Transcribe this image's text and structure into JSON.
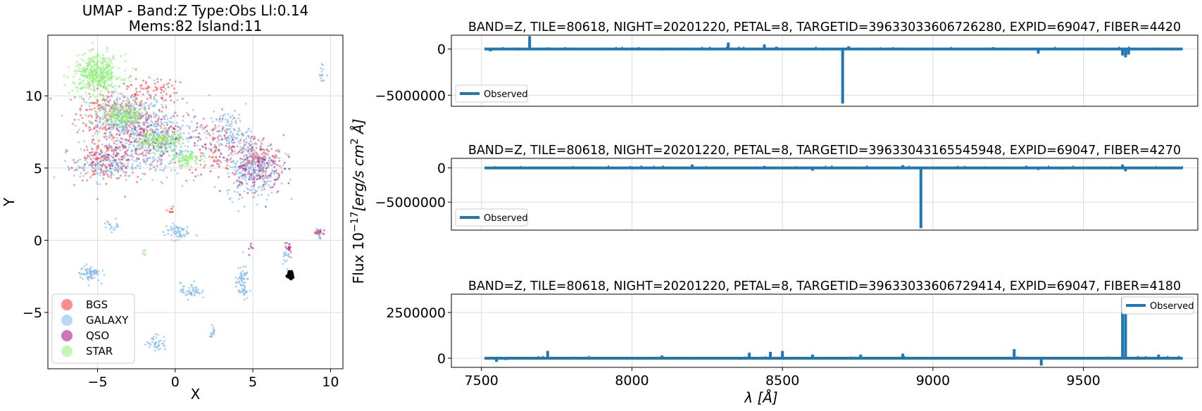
{
  "chart_data": [
    {
      "type": "scatter",
      "title": "UMAP  -  Band:Z Type:Obs Ll:0.14",
      "subtitle": "Mems:82 Island:11",
      "xlabel": "X",
      "ylabel": "Y",
      "xlim": [
        -8.2,
        10.8
      ],
      "ylim": [
        -8.9,
        14.2
      ],
      "xticks": [
        -5,
        0,
        5,
        10
      ],
      "yticks": [
        -5,
        0,
        5,
        10
      ],
      "xtick_labels": [
        "−5",
        "0",
        "5",
        "10"
      ],
      "ytick_labels": [
        "−5",
        "0",
        "5",
        "10"
      ],
      "grid": true,
      "legend_position": "lower-left",
      "series": [
        {
          "name": "BGS",
          "color": "#ff4d4d",
          "clusters": [
            [
              -4.2,
              8.8,
              2.0,
              1.6,
              200
            ],
            [
              -2.0,
              7.5,
              2.2,
              2.4,
              200
            ],
            [
              -4.5,
              5.5,
              1.6,
              1.2,
              150
            ],
            [
              5.2,
              5.5,
              1.6,
              1.6,
              140
            ],
            [
              2.5,
              6.5,
              1.5,
              2.0,
              80
            ],
            [
              -1.5,
              10.5,
              1.5,
              0.8,
              60
            ],
            [
              -0.3,
              2.0,
              0.2,
              0.3,
              10
            ],
            [
              7.3,
              -0.5,
              0.2,
              0.4,
              8
            ],
            [
              9.2,
              0.5,
              0.3,
              0.2,
              8
            ]
          ]
        },
        {
          "name": "GALAXY",
          "color": "#7db8f0",
          "clusters": [
            [
              -3.0,
              8.2,
              2.6,
              2.0,
              400
            ],
            [
              -1.0,
              6.5,
              2.4,
              2.0,
              300
            ],
            [
              -4.5,
              5.2,
              1.8,
              1.0,
              150
            ],
            [
              5.0,
              5.0,
              1.6,
              1.8,
              300
            ],
            [
              3.5,
              7.5,
              1.2,
              1.3,
              120
            ],
            [
              -5.5,
              -2.3,
              0.6,
              0.5,
              70
            ],
            [
              0.1,
              0.6,
              0.7,
              0.5,
              60
            ],
            [
              4.3,
              -3.0,
              0.4,
              1.1,
              70
            ],
            [
              1.0,
              -3.5,
              0.6,
              0.5,
              50
            ],
            [
              -1.2,
              -7.1,
              0.6,
              0.5,
              40
            ],
            [
              -4.0,
              1.0,
              0.5,
              0.4,
              20
            ],
            [
              7.2,
              -1.0,
              0.3,
              0.6,
              20
            ],
            [
              9.3,
              0.4,
              0.3,
              0.4,
              15
            ],
            [
              9.5,
              11.5,
              0.2,
              0.6,
              15
            ],
            [
              2.4,
              -6.2,
              0.2,
              0.5,
              15
            ]
          ]
        },
        {
          "name": "QSO",
          "color": "#b82a8c",
          "clusters": [
            [
              5.3,
              5.0,
              1.5,
              1.6,
              100
            ],
            [
              -2.0,
              7.3,
              2.3,
              1.8,
              80
            ],
            [
              2.4,
              6.5,
              1.4,
              1.8,
              40
            ],
            [
              -4.3,
              5.5,
              1.5,
              1.0,
              30
            ],
            [
              7.3,
              -0.5,
              0.2,
              0.3,
              10
            ],
            [
              9.3,
              0.6,
              0.3,
              0.2,
              8
            ],
            [
              4.9,
              -0.5,
              0.2,
              0.4,
              6
            ]
          ]
        },
        {
          "name": "STAR",
          "color": "#8ef27a",
          "clusters": [
            [
              -5.0,
              11.5,
              1.4,
              1.2,
              420
            ],
            [
              -3.4,
              8.6,
              1.3,
              0.8,
              180
            ],
            [
              -1.0,
              6.9,
              1.3,
              0.6,
              160
            ],
            [
              0.8,
              5.6,
              0.8,
              0.4,
              80
            ],
            [
              -2.0,
              -0.8,
              0.15,
              0.2,
              6
            ]
          ]
        },
        {
          "name": "",
          "color": "#000000",
          "clusters": [
            [
              7.4,
              -2.4,
              0.15,
              0.22,
              60
            ]
          ]
        }
      ],
      "legend": [
        {
          "name": "BGS",
          "color": "#ff4d4d",
          "alpha": 0.65
        },
        {
          "name": "GALAXY",
          "color": "#7db8f0",
          "alpha": 0.55
        },
        {
          "name": "QSO",
          "color": "#b82a8c",
          "alpha": 0.65
        },
        {
          "name": "STAR",
          "color": "#8ef27a",
          "alpha": 0.55
        }
      ]
    },
    {
      "type": "line",
      "title": "BAND=Z, TILE=80618, NIGHT=20201220, PETAL=8, TARGETID=39633033606726280, EXPID=69047, FIBER=4420",
      "xlim": [
        7400,
        9880
      ],
      "ylim": [
        -6200000,
        1500000
      ],
      "yticks": [
        0,
        -5000000
      ],
      "ytick_labels": [
        "0",
        "−5000000"
      ],
      "legend": [
        "Observed"
      ],
      "legend_position": "lower-left",
      "color": "#1f77b4",
      "baseline": 0,
      "spikes": [
        [
          7530,
          -250000
        ],
        [
          7610,
          120000
        ],
        [
          7660,
          1400000
        ],
        [
          7720,
          180000
        ],
        [
          8100,
          -150000
        ],
        [
          8320,
          700000
        ],
        [
          8440,
          500000
        ],
        [
          8480,
          250000
        ],
        [
          8700,
          -5900000
        ],
        [
          8720,
          300000
        ],
        [
          8900,
          150000
        ],
        [
          9200,
          200000
        ],
        [
          9350,
          -500000
        ],
        [
          9630,
          -700000
        ],
        [
          9640,
          -900000
        ],
        [
          9650,
          -600000
        ]
      ]
    },
    {
      "type": "line",
      "title": "BAND=Z, TILE=80618, NIGHT=20201220, PETAL=8, TARGETID=39633043165545948, EXPID=69047, FIBER=4270",
      "xlim": [
        7400,
        9880
      ],
      "ylim": [
        -9100000,
        1400000
      ],
      "yticks": [
        0,
        -5000000
      ],
      "ytick_labels": [
        "0",
        "−5000000"
      ],
      "legend": [
        "Observed"
      ],
      "legend_position": "lower-left",
      "color": "#1f77b4",
      "baseline": 0,
      "spikes": [
        [
          7530,
          -150000
        ],
        [
          7600,
          100000
        ],
        [
          7720,
          120000
        ],
        [
          8200,
          500000
        ],
        [
          8440,
          300000
        ],
        [
          8600,
          -400000
        ],
        [
          8900,
          400000
        ],
        [
          8960,
          -8800000
        ],
        [
          9350,
          -300000
        ],
        [
          9630,
          500000
        ],
        [
          9640,
          -500000
        ]
      ]
    },
    {
      "type": "line",
      "title": "BAND=Z, TILE=80618, NIGHT=20201220, PETAL=8, TARGETID=39633033606729414, EXPID=69047, FIBER=4180",
      "xlabel": "λ [Å]",
      "xlim": [
        7400,
        9880
      ],
      "ylim": [
        -500000,
        3500000
      ],
      "xticks": [
        7500,
        8000,
        8500,
        9000,
        9500
      ],
      "xtick_labels": [
        "7500",
        "8000",
        "8500",
        "9000",
        "9500"
      ],
      "yticks": [
        0,
        2500000
      ],
      "ytick_labels": [
        "0",
        "2500000"
      ],
      "legend": [
        "Observed"
      ],
      "legend_position": "upper-right",
      "color": "#1f77b4",
      "baseline": 0,
      "spikes": [
        [
          7550,
          -200000
        ],
        [
          7580,
          -100000
        ],
        [
          7720,
          400000
        ],
        [
          8100,
          150000
        ],
        [
          8390,
          300000
        ],
        [
          8460,
          350000
        ],
        [
          8500,
          400000
        ],
        [
          8600,
          200000
        ],
        [
          8760,
          200000
        ],
        [
          8900,
          250000
        ],
        [
          9270,
          500000
        ],
        [
          9360,
          -400000
        ],
        [
          9630,
          3300000
        ],
        [
          9640,
          2800000
        ],
        [
          9750,
          200000
        ]
      ]
    }
  ],
  "shared_ylabel": "Flux 10",
  "shared_ylabel_exp": "−17",
  "shared_ylabel_unit": "[erg/s cm",
  "shared_ylabel_sup2": "2",
  "shared_ylabel_end": " Å]"
}
